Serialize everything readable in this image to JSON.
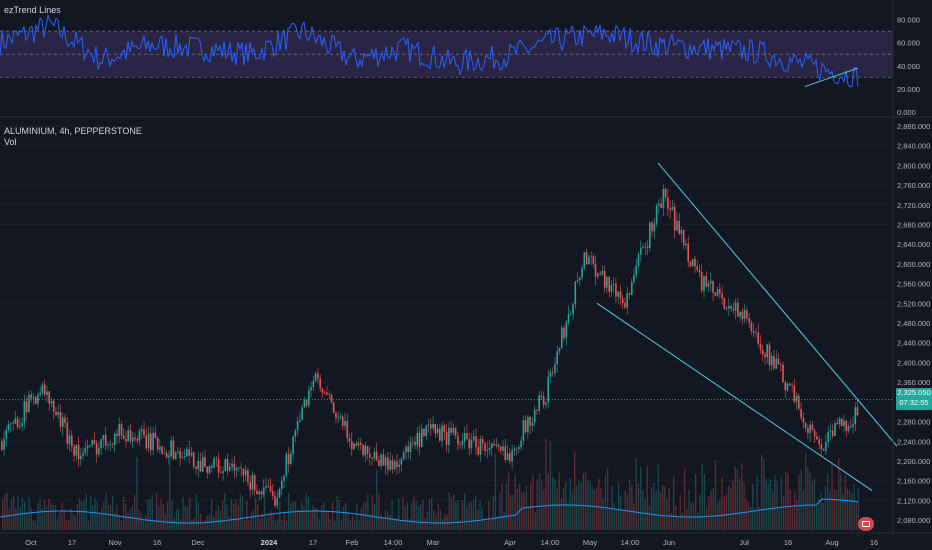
{
  "indicator": {
    "name": "ezTrend Lines",
    "y_ticks": [
      "80.000",
      "60.000",
      "40.000",
      "20.000",
      "0.000"
    ],
    "y_values": [
      80,
      60,
      40,
      20,
      0
    ],
    "upper_band": 70,
    "lower_band": 30
  },
  "main": {
    "symbol": "ALUMINIUM, 4h, PEPPERSTONE",
    "volume_label": "Vol",
    "y_ticks": [
      "2,880.000",
      "2,840.000",
      "2,800.000",
      "2,760.000",
      "2,720.000",
      "2,680.000",
      "2,640.000",
      "2,600.000",
      "2,560.000",
      "2,520.000",
      "2,480.000",
      "2,440.000",
      "2,400.000",
      "2,360.000",
      "2,320.000",
      "2,280.000",
      "2,240.000",
      "2,200.000",
      "2,160.000",
      "2,120.000",
      "2,080.000"
    ],
    "current_price": "2,325.050",
    "countdown": "07:32:55"
  },
  "x_axis": {
    "labels": [
      "Oct",
      "17",
      "Nov",
      "16",
      "Dec",
      "2024",
      "17",
      "Feb",
      "14:00",
      "Mar",
      "Apr",
      "14:00",
      "May",
      "14:00",
      "Jun",
      "Jul",
      "16",
      "Aug",
      "16"
    ],
    "bold": [
      "2024"
    ]
  },
  "colors": {
    "background": "#131722",
    "up": "#26a69a",
    "down": "#ef5350",
    "rsi_line": "#2962ff",
    "band_fill": "#7e57c2",
    "trend_line": "#4dd0e1",
    "volume_ma": "#2196f3"
  },
  "chart_data": [
    {
      "type": "line",
      "title": "ezTrend Lines",
      "ylim": [
        0,
        90
      ],
      "x": [
        "Oct",
        "17",
        "Nov",
        "16",
        "Dec",
        "2024",
        "17",
        "Feb",
        "14:00",
        "Mar",
        "Apr",
        "14:00",
        "May",
        "14:00",
        "Jun",
        "Jul",
        "16",
        "Aug"
      ],
      "series": [
        {
          "values": [
            60,
            75,
            45,
            58,
            55,
            50,
            70,
            45,
            55,
            42,
            48,
            62,
            68,
            58,
            55,
            52,
            40,
            30
          ]
        }
      ],
      "bands": [
        30,
        70
      ],
      "trend_line": {
        "from": [
          16,
          22
        ],
        "to": [
          18,
          38
        ]
      }
    },
    {
      "type": "candlestick",
      "title": "ALUMINIUM, 4h, PEPPERSTONE",
      "ylim": [
        2060,
        2890
      ],
      "x": [
        "Oct",
        "17",
        "Nov",
        "16",
        "Dec",
        "2024",
        "17",
        "Feb",
        "14:00",
        "Mar",
        "Apr",
        "14:00",
        "May",
        "14:00",
        "Jun",
        "Jul",
        "16",
        "Aug"
      ],
      "close_path": [
        2240,
        2350,
        2210,
        2260,
        2235,
        2200,
        2180,
        2120,
        2370,
        2240,
        2190,
        2260,
        2240,
        2210,
        2340,
        2620,
        2520,
        2740,
        2560,
        2500,
        2380,
        2230,
        2300
      ],
      "current_price": 2325.05,
      "trend_lines": [
        {
          "from_price": 2805,
          "to_price": 2230
        },
        {
          "from_price": 2520,
          "to_price": 2140
        }
      ]
    }
  ]
}
